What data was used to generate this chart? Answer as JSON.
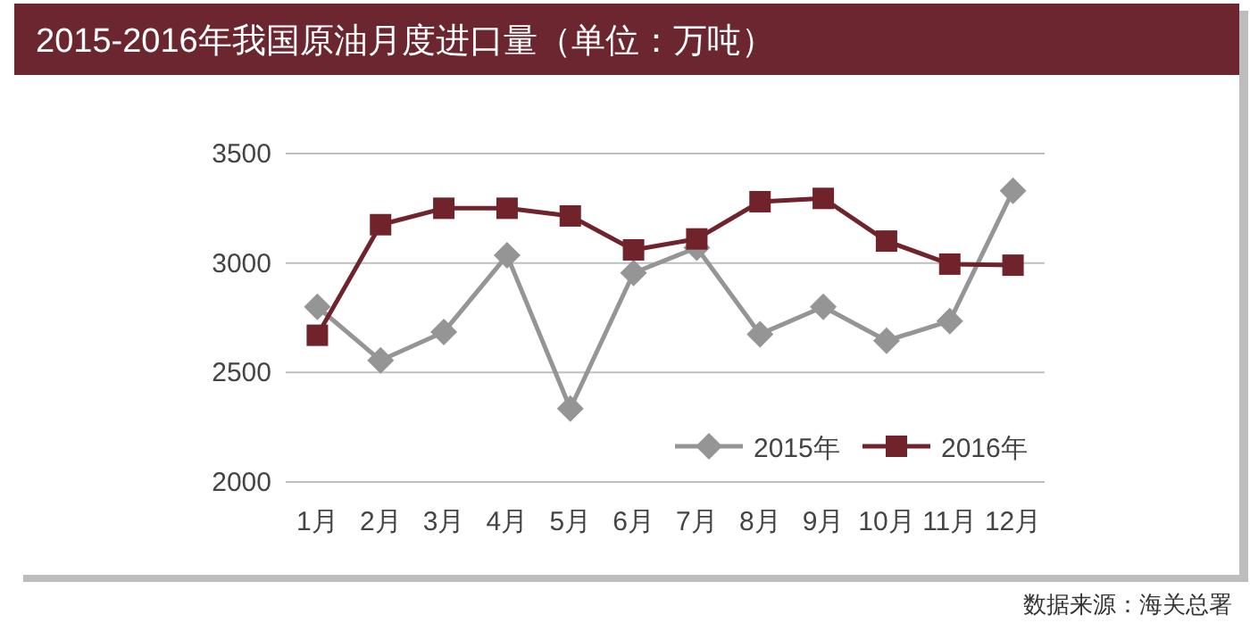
{
  "chart_data": {
    "type": "line",
    "title": "2015-2016年我国原油月度进口量（单位：万吨）",
    "categories": [
      "1月",
      "2月",
      "3月",
      "4月",
      "5月",
      "6月",
      "7月",
      "8月",
      "9月",
      "10月",
      "11月",
      "12月"
    ],
    "series": [
      {
        "name": "2015年",
        "color": "#959595",
        "marker": "diamond",
        "values": [
          2800,
          2555,
          2685,
          3035,
          2335,
          2955,
          3070,
          2675,
          2800,
          2645,
          2735,
          3330
        ]
      },
      {
        "name": "2016年",
        "color": "#70232b",
        "marker": "square",
        "values": [
          2670,
          3175,
          3250,
          3250,
          3215,
          3060,
          3110,
          3280,
          3295,
          3100,
          2995,
          2990
        ]
      }
    ],
    "ylim": [
      2000,
      3500
    ],
    "yticks": [
      2000,
      2500,
      3000,
      3500
    ],
    "grid": "y",
    "legend": "bottom right",
    "annotations": [
      "数据来源：海关总署"
    ]
  }
}
